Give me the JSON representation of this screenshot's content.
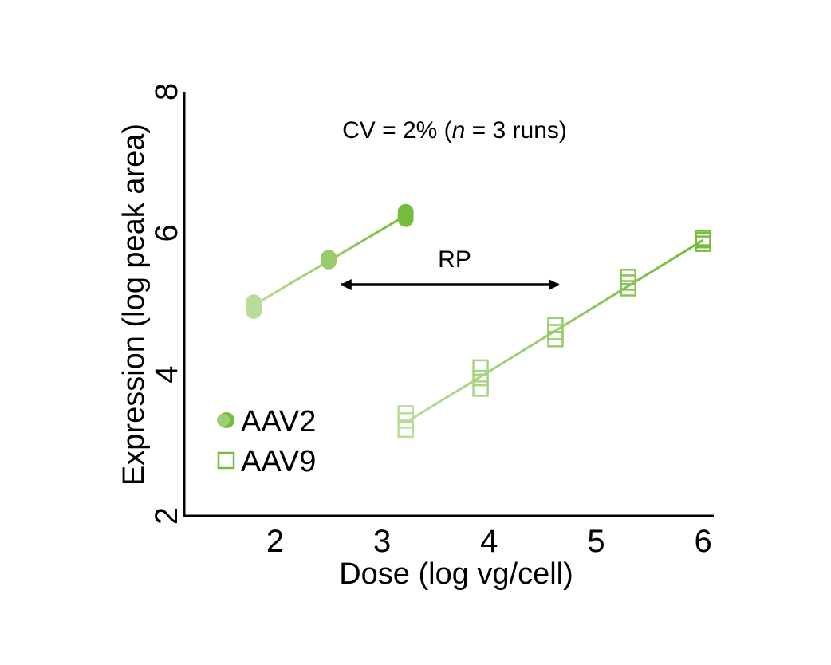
{
  "chart_data": {
    "type": "scatter",
    "xlabel": "Dose (log vg/cell)",
    "ylabel": "Expression (log peak area)",
    "xlim": [
      1.15,
      6.1
    ],
    "ylim": [
      2,
      8
    ],
    "xticks": [
      2,
      3,
      4,
      5,
      6
    ],
    "yticks": [
      2,
      4,
      6,
      8
    ],
    "grid": false,
    "legend_placement": "lower-left",
    "annotations": {
      "cv_prefix": "CV = 2% (",
      "cv_n": "n",
      "cv_suffix": " = 3 runs)",
      "rp_label": "RP",
      "rp_arrow_x": [
        2.62,
        4.65
      ],
      "rp_arrow_y": 5.27
    },
    "series": [
      {
        "name": "AAV2",
        "marker": "circle",
        "color_light": "#b9dc98",
        "color_dark": "#76bc3d",
        "fit": [
          [
            1.8,
            4.98
          ],
          [
            3.22,
            6.25
          ]
        ],
        "points": [
          {
            "x": 1.8,
            "y": 4.96
          },
          {
            "x": 1.8,
            "y": 5.02
          },
          {
            "x": 1.8,
            "y": 4.9
          },
          {
            "x": 2.5,
            "y": 5.62
          },
          {
            "x": 2.5,
            "y": 5.6
          },
          {
            "x": 2.5,
            "y": 5.65
          },
          {
            "x": 3.22,
            "y": 6.25
          },
          {
            "x": 3.22,
            "y": 6.2
          },
          {
            "x": 3.22,
            "y": 6.3
          }
        ]
      },
      {
        "name": "AAV9",
        "marker": "square",
        "color_light": "#b9dc98",
        "color_dark": "#76bc3d",
        "fit": [
          [
            3.22,
            3.32
          ],
          [
            6.0,
            5.9
          ]
        ],
        "points": [
          {
            "x": 3.22,
            "y": 3.22
          },
          {
            "x": 3.22,
            "y": 3.35
          },
          {
            "x": 3.22,
            "y": 3.45
          },
          {
            "x": 3.92,
            "y": 3.8
          },
          {
            "x": 3.92,
            "y": 3.95
          },
          {
            "x": 3.92,
            "y": 4.1
          },
          {
            "x": 4.62,
            "y": 4.5
          },
          {
            "x": 4.62,
            "y": 4.6
          },
          {
            "x": 4.62,
            "y": 4.7
          },
          {
            "x": 5.3,
            "y": 5.22
          },
          {
            "x": 5.3,
            "y": 5.3
          },
          {
            "x": 5.3,
            "y": 5.38
          },
          {
            "x": 6.0,
            "y": 5.85
          },
          {
            "x": 6.0,
            "y": 5.9
          },
          {
            "x": 6.0,
            "y": 5.93
          }
        ]
      }
    ]
  }
}
